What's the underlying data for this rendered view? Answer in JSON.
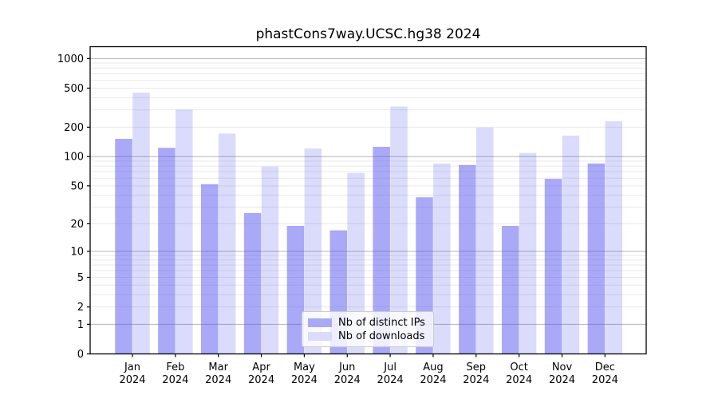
{
  "chart_data": {
    "type": "bar",
    "title": "phastCons7way.UCSC.hg38 2024",
    "categories": [
      "Jan",
      "Feb",
      "Mar",
      "Apr",
      "May",
      "Jun",
      "Jul",
      "Aug",
      "Sep",
      "Oct",
      "Nov",
      "Dec"
    ],
    "x_tick_year": "2024",
    "series": [
      {
        "name": "Nb of distinct IPs",
        "base_color": "#4b4bf0",
        "alpha": 0.48,
        "legend_color": "#a9a9f8",
        "values": [
          152,
          123,
          52,
          26,
          19,
          17,
          126,
          38,
          82,
          19,
          59,
          85
        ]
      },
      {
        "name": "Nb of downloads",
        "base_color": "#4b4bf0",
        "alpha": 0.2,
        "legend_color": "#dbdbfc",
        "values": [
          450,
          302,
          172,
          79,
          121,
          68,
          325,
          85,
          198,
          109,
          164,
          230
        ]
      }
    ],
    "y_axis": {
      "scale": "log1p",
      "tick_labels": [
        0,
        1,
        2,
        5,
        10,
        20,
        50,
        100,
        200,
        500,
        1000
      ],
      "major_grid_values": [
        1,
        10,
        100,
        1000
      ],
      "ylim": [
        0,
        1320
      ]
    },
    "grid": {
      "horizontal": true,
      "major_color": "#b5b5b5",
      "minor_color": "#e9e9e9"
    },
    "legend": {
      "position": "bottom-center"
    },
    "axis_color": "#000000",
    "background_color": "#ffffff"
  }
}
